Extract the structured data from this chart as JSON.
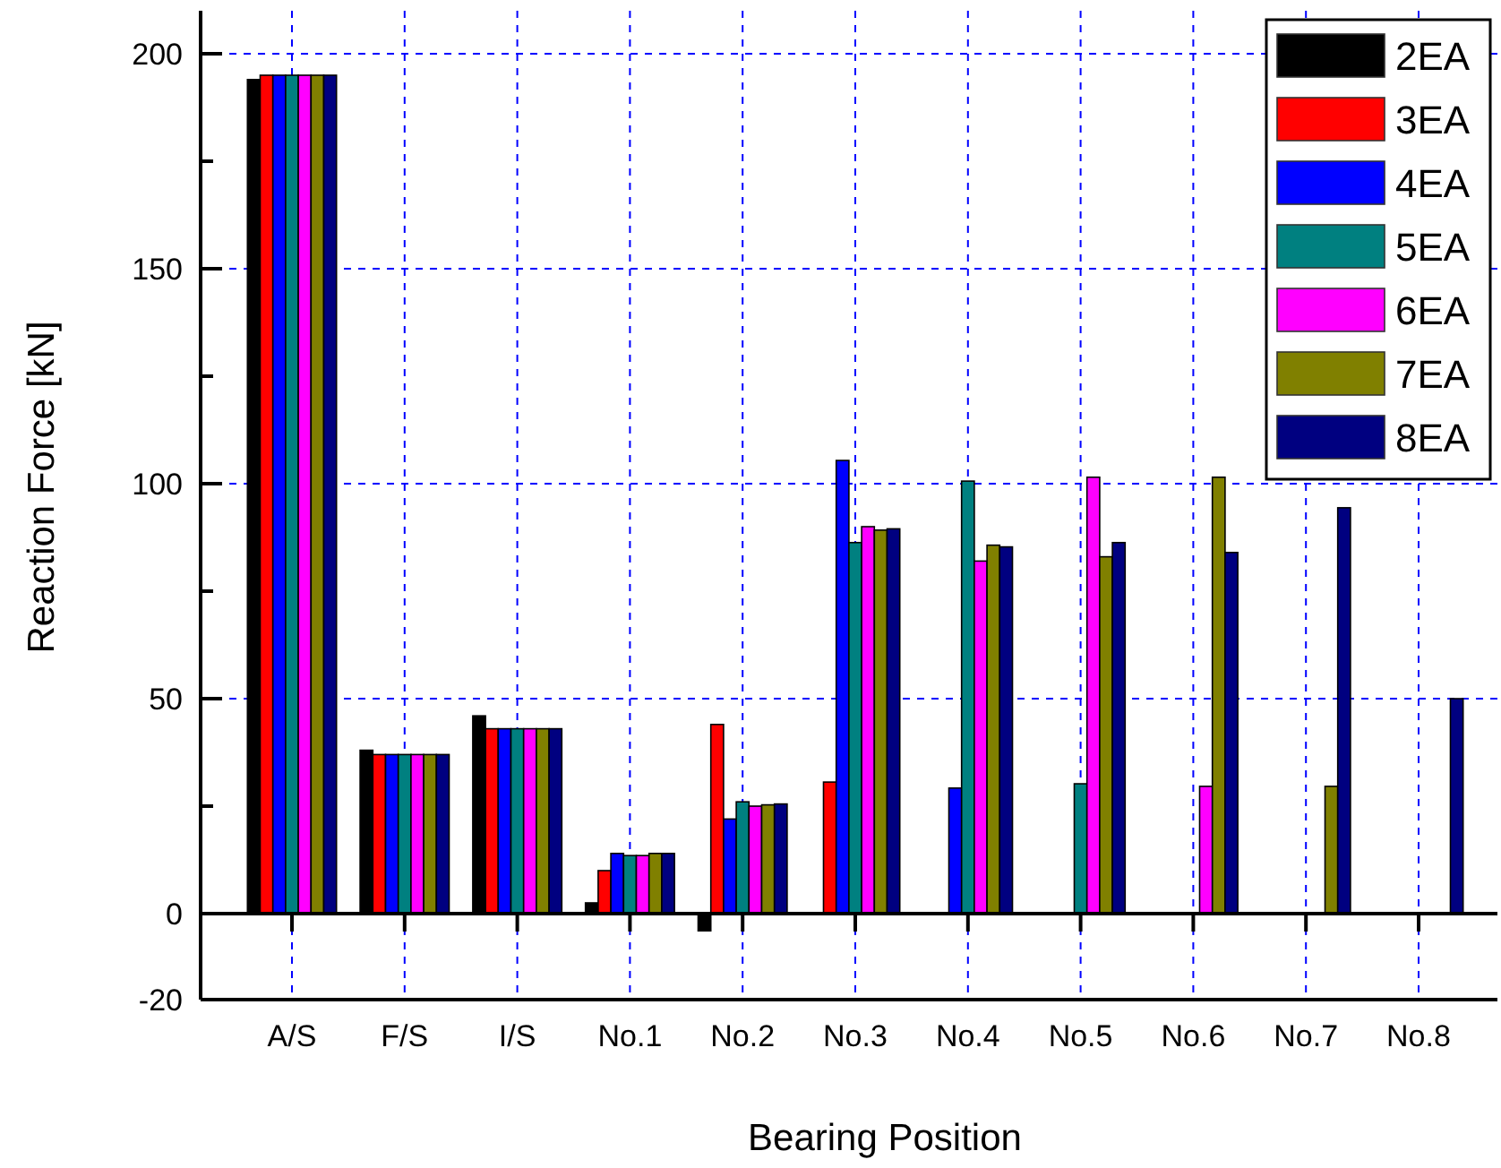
{
  "chart_data": {
    "type": "bar",
    "xlabel": "Bearing Position",
    "ylabel": "Reaction Force [kN]",
    "categories": [
      "A/S",
      "F/S",
      "I/S",
      "No.1",
      "No.2",
      "No.3",
      "No.4",
      "No.5",
      "No.6",
      "No.7",
      "No.8"
    ],
    "series": [
      {
        "name": "2EA",
        "color": "#000000",
        "values": [
          194,
          38,
          46,
          2.5,
          -4,
          null,
          null,
          null,
          null,
          null,
          null
        ]
      },
      {
        "name": "3EA",
        "color": "#ff0000",
        "values": [
          195,
          37,
          43,
          10,
          44,
          30.6,
          null,
          null,
          null,
          null,
          null
        ]
      },
      {
        "name": "4EA",
        "color": "#0000ff",
        "values": [
          195,
          37,
          43,
          14,
          22,
          105.4,
          29.2,
          null,
          null,
          null,
          null
        ]
      },
      {
        "name": "5EA",
        "color": "#008080",
        "values": [
          195,
          37,
          43,
          13.5,
          26,
          86.3,
          100.6,
          30.2,
          null,
          null,
          null
        ]
      },
      {
        "name": "6EA",
        "color": "#ff00ff",
        "values": [
          195,
          37,
          43,
          13.5,
          25,
          90,
          82,
          101.5,
          29.6,
          null,
          null
        ]
      },
      {
        "name": "7EA",
        "color": "#808000",
        "values": [
          195,
          37,
          43,
          14,
          25.3,
          89.2,
          85.7,
          83,
          101.5,
          29.6,
          null
        ]
      },
      {
        "name": "8EA",
        "color": "#000080",
        "values": [
          195,
          37,
          43,
          14,
          25.5,
          89.5,
          85.3,
          86.3,
          84,
          94.4,
          50
        ]
      }
    ],
    "ylim": [
      -20,
      210
    ],
    "yticks": [
      -20,
      0,
      {
        "value": 25,
        "label": null
      },
      50,
      {
        "value": 75,
        "label": null
      },
      100,
      {
        "value": 125,
        "label": null
      },
      150,
      {
        "value": 175,
        "label": null
      },
      200
    ],
    "grid": true,
    "legend": "top right"
  }
}
